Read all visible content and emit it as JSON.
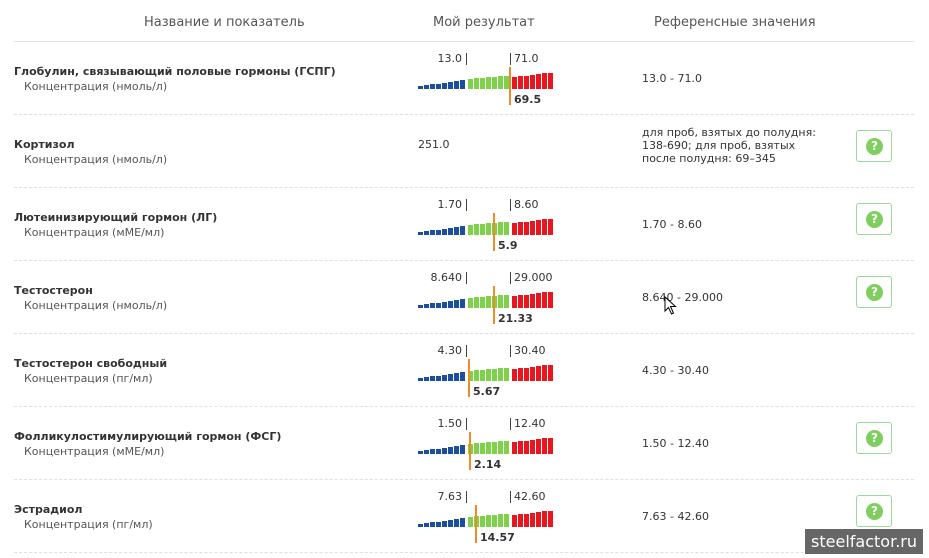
{
  "header": {
    "col_name": "Название и показатель",
    "col_result": "Мой результат",
    "col_reference": "Референсные значения"
  },
  "rows": [
    {
      "name": "Глобулин, связывающий половые гормоны (ГСПГ)",
      "unit": "Концентрация (нмоль/л)",
      "low": "13.0",
      "high": "71.0",
      "value": "69.5",
      "value_num": 69.5,
      "low_num": 13.0,
      "high_num": 71.0,
      "reference": "13.0 - 71.0",
      "has_help": false
    },
    {
      "name": "Кортизол",
      "unit": "Концентрация (нмоль/л)",
      "plain_value": "251.0",
      "reference": "для проб, взятых до полудня: 138-690; для проб, взятых после полудня: 69–345",
      "has_help": true
    },
    {
      "name": "Лютеинизирующий гормон (ЛГ)",
      "unit": "Концентрация (мМЕ/мл)",
      "low": "1.70",
      "high": "8.60",
      "value": "5.9",
      "value_num": 5.9,
      "low_num": 1.7,
      "high_num": 8.6,
      "reference": "1.70 - 8.60",
      "has_help": true
    },
    {
      "name": "Тестостерон",
      "unit": "Концентрация (нмоль/л)",
      "low": "8.640",
      "high": "29.000",
      "value": "21.33",
      "value_num": 21.33,
      "low_num": 8.64,
      "high_num": 29.0,
      "reference": "8.640 - 29.000",
      "has_help": true
    },
    {
      "name": "Тестостерон свободный",
      "unit": "Концентрация (пг/мл)",
      "low": "4.30",
      "high": "30.40",
      "value": "5.67",
      "value_num": 5.67,
      "low_num": 4.3,
      "high_num": 30.4,
      "reference": "4.30 - 30.40",
      "has_help": false
    },
    {
      "name": "Фолликулостимулирующий гормон (ФСГ)",
      "unit": "Концентрация (мМЕ/мл)",
      "low": "1.50",
      "high": "12.40",
      "value": "2.14",
      "value_num": 2.14,
      "low_num": 1.5,
      "high_num": 12.4,
      "reference": "1.50 - 12.40",
      "has_help": true
    },
    {
      "name": "Эстрадиол",
      "unit": "Концентрация (пг/мл)",
      "low": "7.63",
      "high": "42.60",
      "value": "14.57",
      "value_num": 14.57,
      "low_num": 7.63,
      "high_num": 42.6,
      "reference": "7.63 - 42.60",
      "has_help": true
    }
  ],
  "help_glyph": "?",
  "icons": {
    "help": "question-circle-icon",
    "cursor": "mouse-pointer-icon"
  },
  "colors": {
    "below": "#1b4f9b",
    "normal": "#7ed24a",
    "above": "#e8161e",
    "marker": "#f08a24",
    "help": "#7fcf5f"
  },
  "watermark": "steelfactor.ru"
}
